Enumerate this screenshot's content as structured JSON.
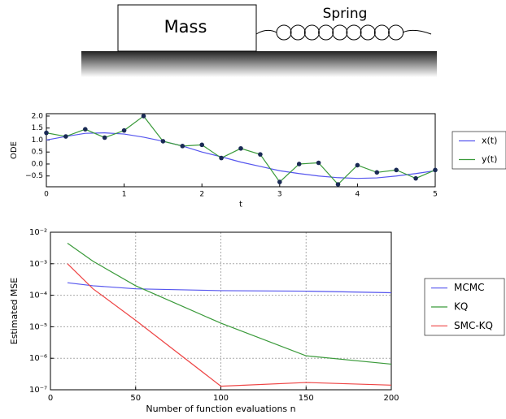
{
  "diagram": {
    "mass_label": "Mass",
    "spring_label": "Spring"
  },
  "chart_data": [
    {
      "type": "line",
      "xlabel": "t",
      "ylabel": "ODE",
      "x": [
        0,
        0.25,
        0.5,
        0.75,
        1,
        1.25,
        1.5,
        1.75,
        2,
        2.25,
        2.5,
        2.75,
        3,
        3.25,
        3.5,
        3.75,
        4,
        4.25,
        4.5,
        4.75,
        5
      ],
      "series": [
        {
          "name": "x(t)",
          "color": "#5555ee",
          "values": [
            1.0,
            1.15,
            1.28,
            1.3,
            1.25,
            1.12,
            0.95,
            0.75,
            0.5,
            0.3,
            0.08,
            -0.1,
            -0.28,
            -0.4,
            -0.5,
            -0.57,
            -0.6,
            -0.58,
            -0.5,
            -0.4,
            -0.28
          ]
        },
        {
          "name": "y(t)",
          "color": "#3a9a3a",
          "marker": "o",
          "marker_color": "#1a2a55",
          "values": [
            1.3,
            1.15,
            1.45,
            1.1,
            1.4,
            2.0,
            0.95,
            0.75,
            0.8,
            0.25,
            0.65,
            0.4,
            -0.75,
            0.0,
            0.05,
            -0.85,
            -0.05,
            -0.35,
            -0.25,
            -0.6,
            -0.25
          ]
        }
      ],
      "xlim": [
        0,
        5
      ],
      "xticks": [
        0,
        1,
        2,
        3,
        4,
        5
      ],
      "ylim": [
        -0.95,
        2.1
      ],
      "yticks": [
        {
          "value": -0.5,
          "label": "−0.5"
        },
        {
          "value": 0,
          "label": "0.0"
        },
        {
          "value": 0.5,
          "label": "0.5"
        },
        {
          "value": 1,
          "label": "1.0"
        },
        {
          "value": 1.5,
          "label": "1.5"
        },
        {
          "value": 2,
          "label": "2.0"
        }
      ],
      "grid": false,
      "legend": "outside right"
    },
    {
      "type": "line",
      "xlabel": "Number of function evaluations n",
      "ylabel": "Estimated MSE",
      "x": [
        10,
        25,
        50,
        100,
        150,
        200
      ],
      "series": [
        {
          "name": "MCMC",
          "color": "#5555ee",
          "values": [
            0.00025,
            0.0002,
            0.00016,
            0.00014,
            0.000135,
            0.00012
          ]
        },
        {
          "name": "KQ",
          "color": "#3a9a3a",
          "values": [
            0.0045,
            0.0012,
            0.0002,
            1.3e-05,
            1.2e-06,
            6.5e-07
          ]
        },
        {
          "name": "SMC-KQ",
          "color": "#ee4444",
          "values": [
            0.001,
            0.00016,
            1.6e-05,
            1.3e-07,
            1.7e-07,
            1.4e-07
          ]
        }
      ],
      "xlim": [
        0,
        200
      ],
      "xticks": [
        0,
        50,
        100,
        150,
        200
      ],
      "ylim": [
        1e-07,
        0.01
      ],
      "yscale": "log",
      "yticks": [
        {
          "value": 1e-07,
          "label": "10⁻⁷"
        },
        {
          "value": 1e-06,
          "label": "10⁻⁶"
        },
        {
          "value": 1e-05,
          "label": "10⁻⁵"
        },
        {
          "value": 0.0001,
          "label": "10⁻⁴"
        },
        {
          "value": 0.001,
          "label": "10⁻³"
        },
        {
          "value": 0.01,
          "label": "10⁻²"
        }
      ],
      "grid": true,
      "legend": "outside right"
    }
  ]
}
